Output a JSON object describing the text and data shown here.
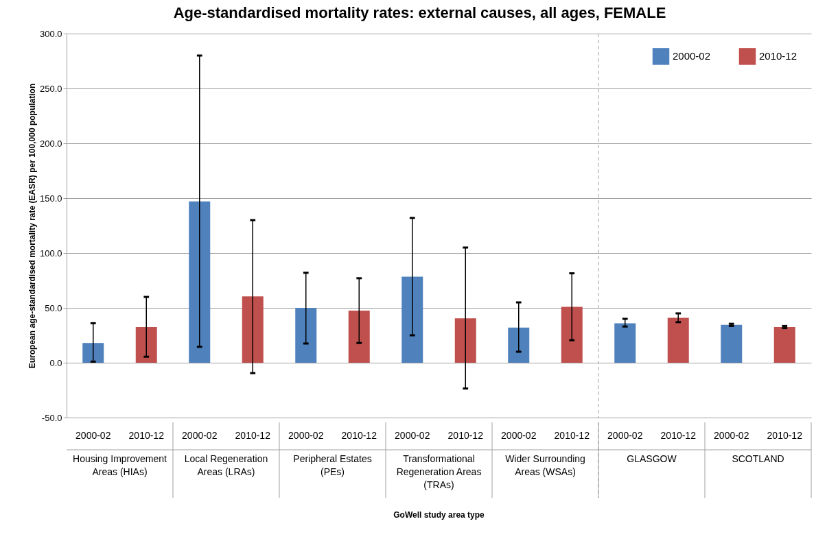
{
  "chart_data": {
    "type": "bar",
    "title": "Age-standardised mortality rates: external causes, all ages, FEMALE",
    "xlabel": "GoWell study area type",
    "ylabel": "European age-standardised mortality rate (EASR) per 100,000 population",
    "categories": [
      "Housing Improvement Areas (HIAs)",
      "Local Regeneration Areas (LRAs)",
      "Peripheral Estates (PEs)",
      "Transformational Regeneration Areas (TRAs)",
      "Wider Surrounding Areas (WSAs)",
      "GLASGOW",
      "SCOTLAND"
    ],
    "series": [
      {
        "name": "2000-02",
        "color": "#4f81bd",
        "values": [
          18,
          147,
          50,
          78.5,
          32,
          36,
          34.5
        ],
        "errors": [
          [
            1,
            36
          ],
          [
            14.5,
            280
          ],
          [
            17.5,
            82
          ],
          [
            25,
            132
          ],
          [
            10,
            55
          ],
          [
            33,
            40
          ],
          [
            33.5,
            35.5
          ]
        ]
      },
      {
        "name": "2010-12",
        "color": "#c0504d",
        "values": [
          32.5,
          60.5,
          47.5,
          40.5,
          51,
          41,
          32.5
        ],
        "errors": [
          [
            5.5,
            60
          ],
          [
            -9.5,
            130
          ],
          [
            18,
            77
          ],
          [
            -23.5,
            105
          ],
          [
            20.5,
            81.5
          ],
          [
            37,
            45
          ],
          [
            31.5,
            33.5
          ]
        ]
      }
    ],
    "ylim": [
      -50,
      300
    ],
    "yticks": [
      {
        "value": -50,
        "label": "-50.0"
      },
      {
        "value": 0,
        "label": "0.0"
      },
      {
        "value": 50,
        "label": "50.0"
      },
      {
        "value": 100,
        "label": "100.0"
      },
      {
        "value": 150,
        "label": "150.0"
      },
      {
        "value": 200,
        "label": "200.0"
      },
      {
        "value": 250,
        "label": "250.0"
      },
      {
        "value": 300,
        "label": "300.0"
      }
    ],
    "grid": "y",
    "legend": "top right",
    "ref_lines": [
      {
        "axis": "x",
        "value": "GLASGOW",
        "color": "#a0a0a0",
        "line_style": "dashed"
      }
    ]
  }
}
